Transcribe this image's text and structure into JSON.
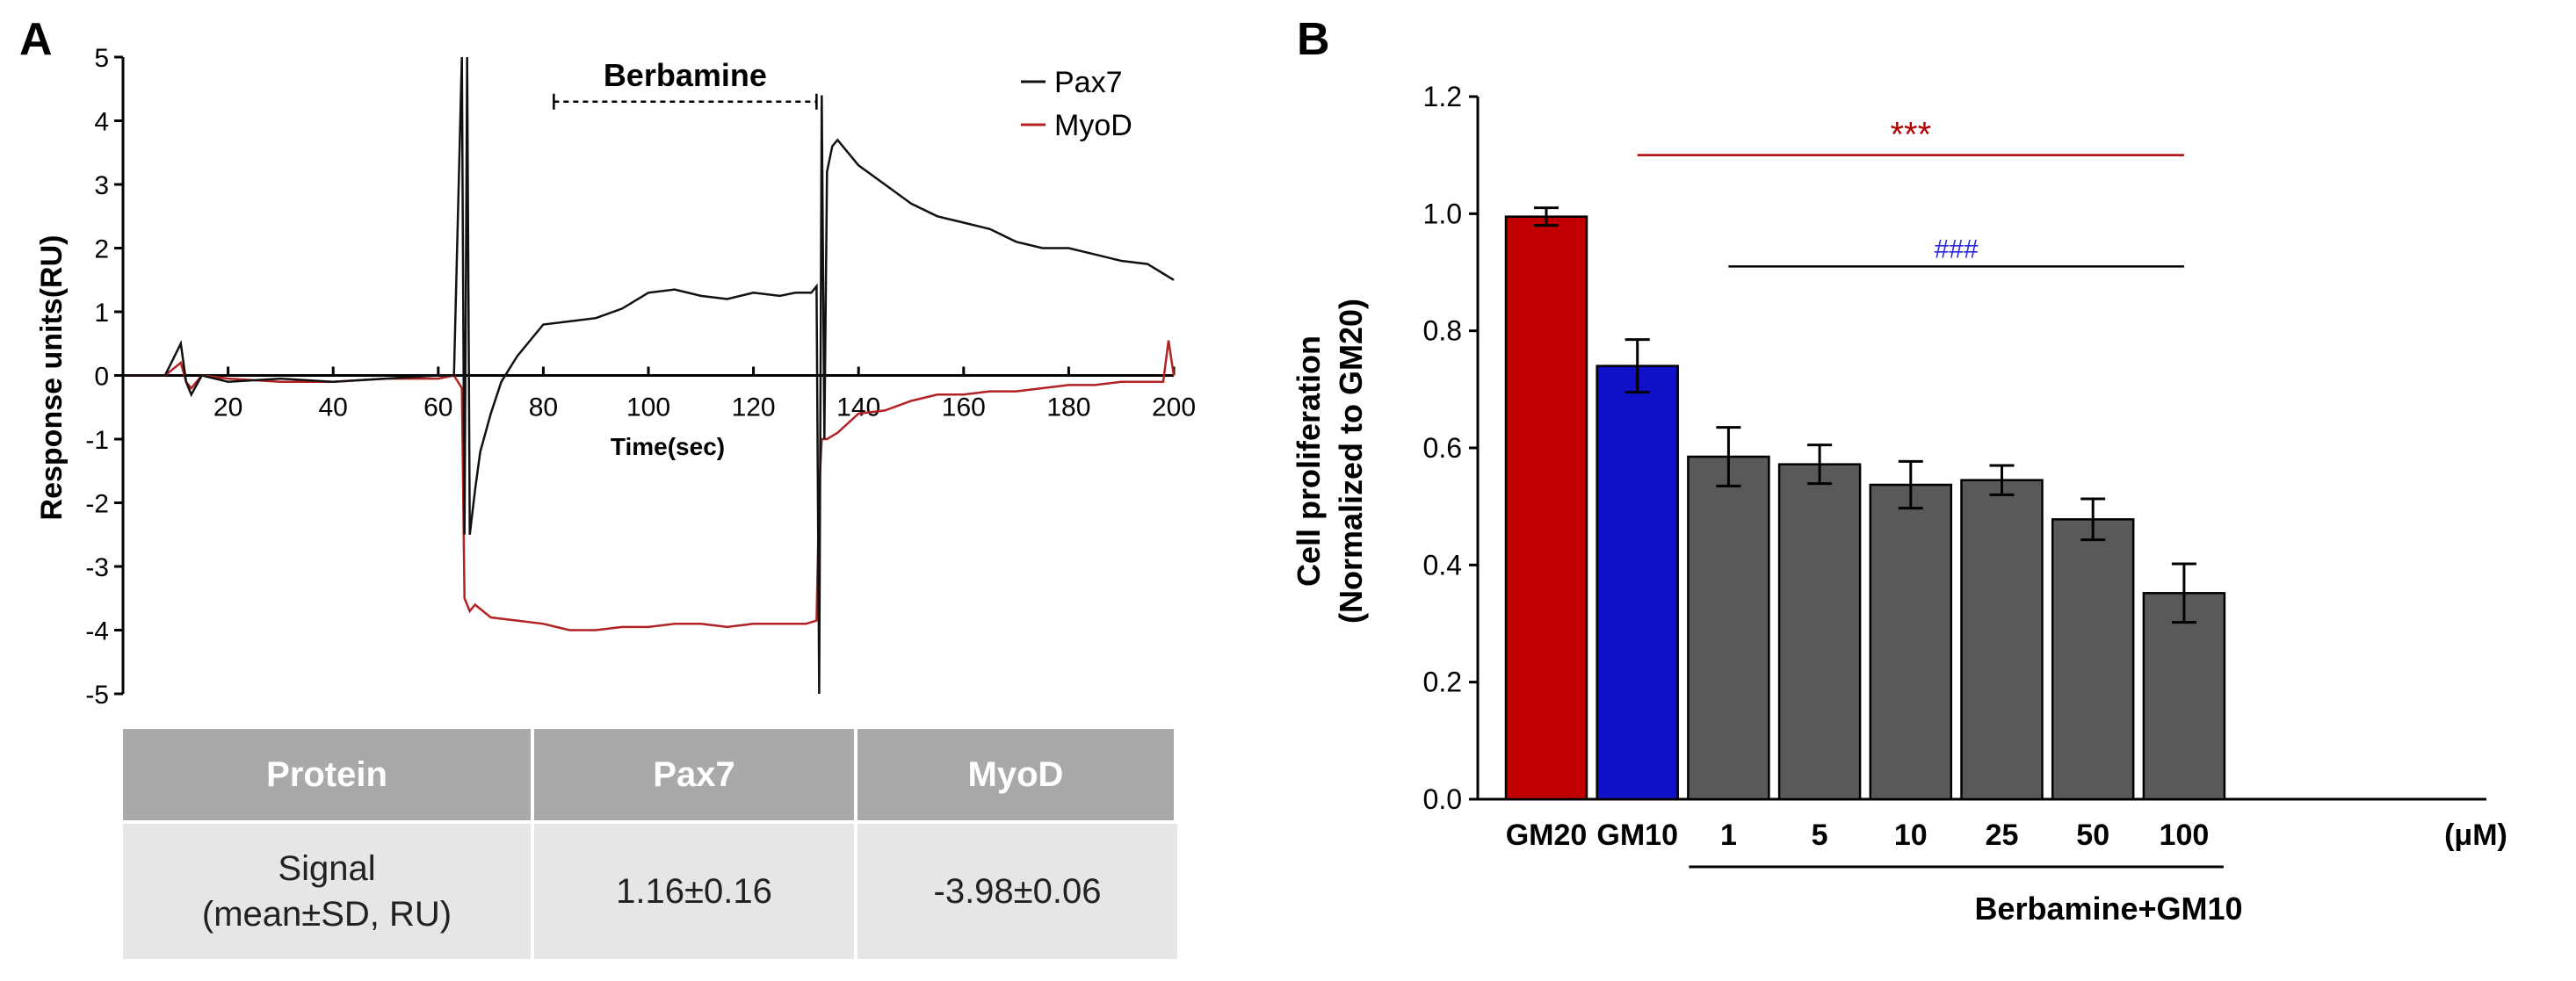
{
  "panel_labels": {
    "a": "A",
    "b": "B"
  },
  "colors": {
    "pax7": "#111111",
    "myod": "#b22222",
    "gm20": "#c00000",
    "gm10": "#1010c8",
    "berbamine": "#595959",
    "sig_red": "#b00000",
    "sig_blue": "#2a2adc"
  },
  "chart_data": [
    {
      "type": "line",
      "title": "",
      "xlabel": "Time(sec)",
      "ylabel": "Response units(RU)",
      "xlim": [
        0,
        200
      ],
      "ylim": [
        -5,
        5
      ],
      "xticks": [
        20,
        40,
        60,
        80,
        100,
        120,
        140,
        160,
        180,
        200
      ],
      "yticks": [
        -5,
        -4,
        -3,
        -2,
        -1,
        0,
        1,
        2,
        3,
        4,
        5
      ],
      "annotation": {
        "text": "Berbamine",
        "x_start": 82,
        "x_end": 132,
        "y": 4.3
      },
      "series": [
        {
          "name": "Pax7",
          "color": "#111111",
          "x": [
            0,
            8,
            11,
            12,
            13,
            15,
            20,
            30,
            40,
            50,
            60,
            63,
            64.5,
            65,
            65.5,
            66,
            67,
            68,
            70,
            72,
            75,
            78,
            80,
            85,
            90,
            95,
            100,
            105,
            110,
            115,
            120,
            125,
            128,
            131,
            132,
            132.5,
            133,
            133.5,
            134,
            135,
            136,
            140,
            145,
            150,
            155,
            160,
            165,
            170,
            175,
            180,
            185,
            190,
            195,
            198,
            200
          ],
          "y": [
            0,
            0,
            0.5,
            -0.1,
            -0.3,
            0,
            -0.1,
            -0.05,
            -0.1,
            -0.05,
            0,
            0,
            5,
            -2.5,
            5,
            -2.5,
            -1.8,
            -1.2,
            -0.6,
            -0.1,
            0.3,
            0.6,
            0.8,
            0.85,
            0.9,
            1.05,
            1.3,
            1.35,
            1.25,
            1.2,
            1.3,
            1.25,
            1.3,
            1.3,
            1.4,
            -5,
            4.4,
            -1,
            3.2,
            3.6,
            3.7,
            3.3,
            3.0,
            2.7,
            2.5,
            2.4,
            2.3,
            2.1,
            2.0,
            2.0,
            1.9,
            1.8,
            1.75,
            1.6,
            1.5
          ]
        },
        {
          "name": "MyoD",
          "color": "#b22222",
          "x": [
            0,
            8,
            11,
            12,
            13,
            15,
            20,
            30,
            40,
            50,
            60,
            63,
            64.5,
            65,
            65.5,
            66,
            67,
            70,
            75,
            80,
            85,
            90,
            95,
            100,
            105,
            110,
            115,
            120,
            125,
            130,
            132,
            132.5,
            133,
            134,
            136,
            140,
            145,
            150,
            155,
            160,
            165,
            170,
            175,
            180,
            185,
            190,
            195,
            198,
            199,
            200
          ],
          "y": [
            0,
            0,
            0.2,
            -0.1,
            -0.2,
            0,
            -0.05,
            -0.1,
            -0.1,
            -0.05,
            -0.05,
            0,
            -0.2,
            -3.5,
            -3.6,
            -3.7,
            -3.6,
            -3.8,
            -3.85,
            -3.9,
            -4.0,
            -4.0,
            -3.95,
            -3.95,
            -3.9,
            -3.9,
            -3.95,
            -3.9,
            -3.9,
            -3.9,
            -3.85,
            -1.8,
            -1.0,
            -1.0,
            -0.9,
            -0.6,
            -0.55,
            -0.4,
            -0.3,
            -0.3,
            -0.25,
            -0.25,
            -0.2,
            -0.15,
            -0.15,
            -0.1,
            -0.1,
            -0.1,
            0.55,
            0
          ]
        }
      ]
    },
    {
      "type": "bar",
      "title": "",
      "xlabel": "Berbamine+GM10",
      "ylabel": "Cell proliferation (Normalized to GM20)",
      "ylabel_lines": [
        "Cell proliferation",
        "(Normalized to GM20)"
      ],
      "ylim": [
        0,
        1.2
      ],
      "yticks": [
        "0.0",
        "0.2",
        "0.4",
        "0.6",
        "0.8",
        "1.0",
        "1.2"
      ],
      "categories": [
        "GM20",
        "GM10",
        "1",
        "5",
        "10",
        "25",
        "50",
        "100"
      ],
      "unit_label": "(μM)",
      "values": [
        0.995,
        0.74,
        0.585,
        0.572,
        0.537,
        0.545,
        0.478,
        0.352
      ],
      "errors": [
        0.015,
        0.045,
        0.05,
        0.033,
        0.04,
        0.025,
        0.035,
        0.05
      ],
      "bar_colors": [
        "#c00000",
        "#1010c8",
        "#595959",
        "#595959",
        "#595959",
        "#595959",
        "#595959",
        "#595959"
      ],
      "significance": [
        {
          "label": "***",
          "from": "GM10",
          "to": "100",
          "color": "#b00000"
        },
        {
          "label": "###",
          "from": "1",
          "to": "100",
          "color": "#2a2adc"
        }
      ]
    }
  ],
  "table": {
    "headers": [
      "Protein",
      "Pax7",
      "MyoD"
    ],
    "row_label_line1": "Signal",
    "row_label_line2": "(mean±SD,  RU)",
    "pax7_value": "1.16±0.16",
    "myod_value": "-3.98±0.06"
  }
}
